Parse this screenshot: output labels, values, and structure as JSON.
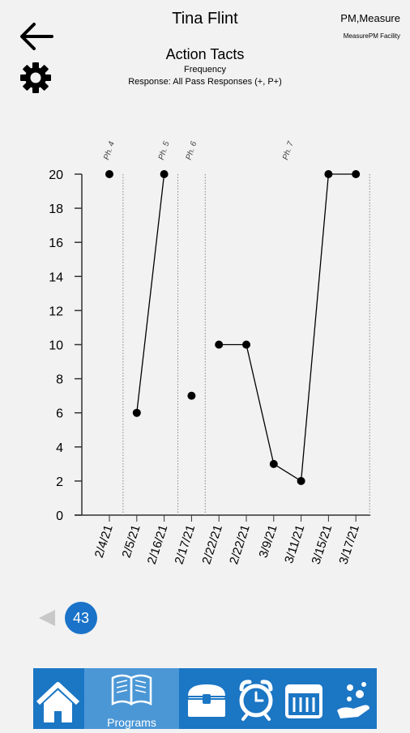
{
  "header": {
    "student_name": "Tina Flint",
    "organization": "PM,Measure",
    "facility": "MeasurePM Facility",
    "back_icon": "arrow-left-icon",
    "settings_icon": "gear-icon"
  },
  "chart_data": {
    "type": "line",
    "title": "Action Tacts",
    "subtitle": "Frequency",
    "subtitle2": "Response: All Pass Responses (+, P+)",
    "categories": [
      "2/4/21",
      "2/5/21",
      "2/16/21",
      "2/17/21",
      "2/22/21",
      "2/22/21",
      "3/9/21",
      "3/11/21",
      "3/15/21",
      "3/17/21"
    ],
    "values": [
      20,
      6,
      20,
      7,
      10,
      10,
      3,
      2,
      20,
      20
    ],
    "segments": [
      [
        0,
        0
      ],
      [
        1,
        2
      ],
      [
        3,
        3
      ],
      [
        4,
        9
      ]
    ],
    "ylim": [
      0,
      20
    ],
    "yticks": [
      0,
      2,
      4,
      6,
      8,
      10,
      12,
      14,
      16,
      18,
      20
    ],
    "phases": [
      {
        "label": "Ph. 4",
        "start": 0
      },
      {
        "label": "Ph. 5",
        "start": 1
      },
      {
        "label": "Ph. 6",
        "start": 3
      },
      {
        "label": "Ph. 7",
        "start": 4
      }
    ],
    "colors": {
      "line": "#000000",
      "axis": "#333333",
      "phase_line": "#888888"
    }
  },
  "pagination": {
    "page": "43",
    "prev_icon": "triangle-left-icon",
    "accent": "#1a73c9"
  },
  "bottom_nav": {
    "items": [
      {
        "icon": "home-icon"
      },
      {
        "icon": "book-icon",
        "label": "Programs"
      },
      {
        "icon": "treasure-chest-icon"
      },
      {
        "icon": "alarm-clock-icon"
      },
      {
        "icon": "calendar-icon"
      },
      {
        "icon": "hand-sparkles-icon"
      }
    ],
    "bg_color": "#1b76c4",
    "active_color": "#4b97d6"
  }
}
